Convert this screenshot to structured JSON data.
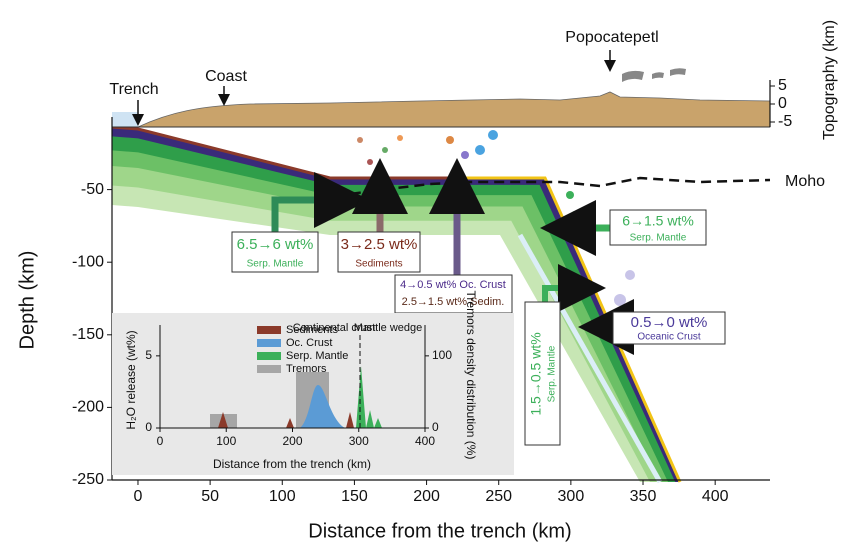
{
  "main": {
    "xlabel": "Distance from the trench (km)",
    "ylabel": "Depth (km)",
    "y2label": "Topography (km)",
    "xlim": [
      -18,
      438
    ],
    "ylim": [
      -250,
      0
    ],
    "y2lim": [
      -5,
      5
    ],
    "xticks": [
      0,
      50,
      100,
      150,
      200,
      250,
      300,
      350,
      400
    ],
    "yticks": [
      -50,
      -100,
      -150,
      -200,
      -250
    ],
    "y2ticks": [
      5,
      0,
      -5
    ]
  },
  "places": {
    "trench": "Trench",
    "coast": "Coast",
    "volcano": "Popocatepetl",
    "moho": "Moho"
  },
  "annotations": [
    {
      "value": "6.5→6 wt%",
      "unit": "Serp. Mantle"
    },
    {
      "value": "3→2.5 wt%",
      "unit": "Sediments"
    },
    {
      "value": "4→0.5 wt% Oc. Crust",
      "unit": "2.5→1.5 wt% Sedim."
    },
    {
      "value": "6→1.5 wt%",
      "unit": "Serp. Mantle"
    },
    {
      "value": "1.5→0.5 wt%",
      "unit": "Serp. Mantle"
    },
    {
      "value": "0.5→0 wt%",
      "unit": "Oceanic Crust"
    }
  ],
  "inset": {
    "xlabel": "Distance from the trench (km)",
    "ylabel": "H₂O release (wt%)",
    "y2label": "Tremors density distribution (%)",
    "xlim": [
      0,
      400
    ],
    "ylim": [
      0,
      7
    ],
    "y2lim": [
      0,
      140
    ],
    "xticks": [
      0,
      100,
      200,
      300,
      400
    ],
    "yticks": [
      0,
      5
    ],
    "y2ticks": [
      0,
      100
    ],
    "legend": [
      {
        "name": "Sediments",
        "color": "#8b3a2a"
      },
      {
        "name": "Oc. Crust",
        "color": "#5b9bd5"
      },
      {
        "name": "Serp. Mantle",
        "color": "#3cb05a"
      },
      {
        "name": "Tremors",
        "color": "#a6a6a6"
      }
    ],
    "left_region": "Continental crust",
    "right_region": "Mantle wedge"
  }
}
